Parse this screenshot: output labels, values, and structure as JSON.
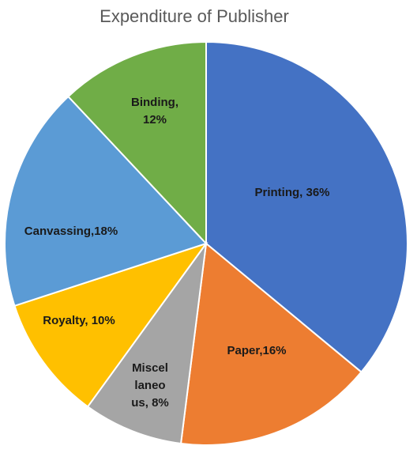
{
  "chart_data": {
    "type": "pie",
    "title": "Expenditure of Publisher",
    "values": [
      36,
      16,
      8,
      10,
      18,
      12
    ],
    "value_labels": [
      "Printing, 36%",
      "Paper,16%",
      "Miscel\nlaneo\nus, 8%",
      "Royalty, 10%",
      "Canvassing,18%",
      "Binding,\n12%"
    ],
    "colors": [
      "#4472c4",
      "#ed7d31",
      "#a5a5a5",
      "#ffc000",
      "#5b9bd5",
      "#70ad47"
    ]
  }
}
